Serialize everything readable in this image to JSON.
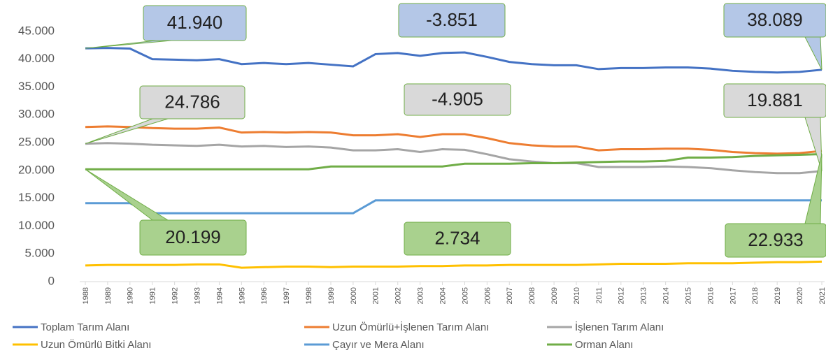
{
  "chart_data": {
    "type": "line",
    "x": [
      1988,
      1989,
      1990,
      1991,
      1992,
      1993,
      1994,
      1995,
      1996,
      1997,
      1998,
      1999,
      2000,
      2001,
      2002,
      2003,
      2004,
      2005,
      2006,
      2007,
      2008,
      2009,
      2010,
      2011,
      2012,
      2013,
      2014,
      2015,
      2016,
      2017,
      2018,
      2019,
      2020,
      2021
    ],
    "xlim": [
      1988,
      2021
    ],
    "ylim": [
      0,
      50000
    ],
    "yticks": [
      0,
      {
        "value": 5000,
        "label": "5.000"
      },
      {
        "value": 10000,
        "label": "10.000"
      },
      {
        "value": 15000,
        "label": "15.000"
      },
      {
        "value": 20000,
        "label": "20.000"
      },
      {
        "value": 25000,
        "label": "25.000"
      },
      {
        "value": 30000,
        "label": "30.000"
      },
      {
        "value": 35000,
        "label": "35.000"
      },
      {
        "value": 40000,
        "label": "40.000"
      },
      {
        "value": 45000,
        "label": "45.000"
      }
    ],
    "series": [
      {
        "name": "Toplam Tarım Alanı",
        "color": "#4472c4",
        "values": [
          41940,
          42000,
          41900,
          40000,
          39900,
          39800,
          40000,
          39100,
          39300,
          39100,
          39300,
          39000,
          38700,
          40900,
          41100,
          40600,
          41100,
          41200,
          40400,
          39500,
          39100,
          38900,
          38900,
          38200,
          38400,
          38400,
          38500,
          38500,
          38300,
          37900,
          37700,
          37600,
          37700,
          38089
        ]
      },
      {
        "name": "Uzun Ömürlü+İşlenen Tarım Alanı",
        "color": "#ed7d31",
        "values": [
          27800,
          27900,
          27800,
          27600,
          27500,
          27500,
          27700,
          26800,
          26900,
          26800,
          26900,
          26800,
          26300,
          26300,
          26500,
          26000,
          26500,
          26500,
          25800,
          24900,
          24500,
          24300,
          24300,
          23600,
          23800,
          23800,
          23900,
          23900,
          23700,
          23300,
          23100,
          23000,
          23100,
          23500
        ]
      },
      {
        "name": "İşlenen Tarım Alanı",
        "color": "#a5a5a5",
        "values": [
          24786,
          24900,
          24800,
          24600,
          24500,
          24400,
          24600,
          24300,
          24400,
          24200,
          24300,
          24100,
          23600,
          23600,
          23800,
          23300,
          23800,
          23700,
          22900,
          22000,
          21600,
          21300,
          21300,
          20600,
          20600,
          20600,
          20700,
          20600,
          20400,
          20000,
          19700,
          19500,
          19500,
          19881
        ]
      },
      {
        "name": "Uzun Ömürlü Bitki Alanı",
        "color": "#ffc000",
        "values": [
          2900,
          3000,
          3000,
          3000,
          3000,
          3100,
          3100,
          2500,
          2600,
          2700,
          2700,
          2600,
          2700,
          2700,
          2700,
          2800,
          2800,
          2900,
          2900,
          3000,
          3000,
          3000,
          3000,
          3100,
          3200,
          3200,
          3200,
          3300,
          3300,
          3300,
          3400,
          3500,
          3500,
          3600
        ]
      },
      {
        "name": "Çayır ve Mera Alanı",
        "color": "#5b9bd5",
        "values": [
          14100,
          14100,
          14100,
          12300,
          12300,
          12300,
          12300,
          12300,
          12300,
          12300,
          12300,
          12300,
          12300,
          14600,
          14600,
          14600,
          14600,
          14600,
          14600,
          14600,
          14600,
          14600,
          14600,
          14600,
          14600,
          14600,
          14600,
          14600,
          14600,
          14600,
          14600,
          14600,
          14600,
          14600
        ]
      },
      {
        "name": "Orman Alanı",
        "color": "#70ad47",
        "values": [
          20199,
          20200,
          20200,
          20200,
          20200,
          20200,
          20200,
          20200,
          20200,
          20200,
          20200,
          20700,
          20700,
          20700,
          20700,
          20700,
          20700,
          21200,
          21200,
          21200,
          21300,
          21300,
          21400,
          21500,
          21600,
          21600,
          21700,
          22300,
          22300,
          22400,
          22600,
          22700,
          22800,
          22933
        ]
      }
    ],
    "annotations": [
      {
        "text": "41.940",
        "color": "#b4c7e7",
        "x": 1988,
        "y": 41940
      },
      {
        "text": "-3.851",
        "color": "#b4c7e7"
      },
      {
        "text": "38.089",
        "color": "#b4c7e7",
        "x": 2021,
        "y": 38089
      },
      {
        "text": "24.786",
        "color": "#d9d9d9",
        "x": 1988,
        "y": 24786
      },
      {
        "text": "-4.905",
        "color": "#d9d9d9"
      },
      {
        "text": "19.881",
        "color": "#d9d9d9",
        "x": 2021,
        "y": 19881
      },
      {
        "text": "20.199",
        "color": "#a9d18e",
        "x": 1988,
        "y": 20199
      },
      {
        "text": "2.734",
        "color": "#a9d18e"
      },
      {
        "text": "22.933",
        "color": "#a9d18e",
        "x": 2021,
        "y": 22933
      }
    ]
  }
}
